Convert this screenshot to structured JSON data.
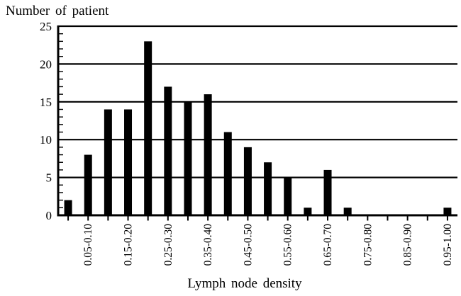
{
  "chart_data": {
    "type": "bar",
    "title": "Number of patient",
    "xlabel": "Lymph node density",
    "ylim": [
      0,
      25
    ],
    "y_ticks": [
      0,
      5,
      10,
      15,
      20,
      25
    ],
    "y_minor_tick_step": 1,
    "grid": "horizontal",
    "legend": "none",
    "bar_color": "#000000",
    "background_color": "#ffffff",
    "bin_width": 0.05,
    "x_label_rotation_degrees": 90,
    "categories": [
      "",
      "0.05-0.10",
      "",
      "0.15-0.20",
      "",
      "0.25-0.30",
      "",
      "0.35-0.40",
      "",
      "0.45-0.50",
      "",
      "0.55-0.60",
      "",
      "0.65-0.70",
      "",
      "0.75-0.80",
      "",
      "0.85-0.90",
      "",
      "0.95-1.00"
    ],
    "values": [
      2,
      8,
      14,
      14,
      23,
      17,
      15,
      16,
      11,
      9,
      7,
      5,
      1,
      6,
      1,
      0,
      0,
      0,
      0,
      1
    ]
  }
}
